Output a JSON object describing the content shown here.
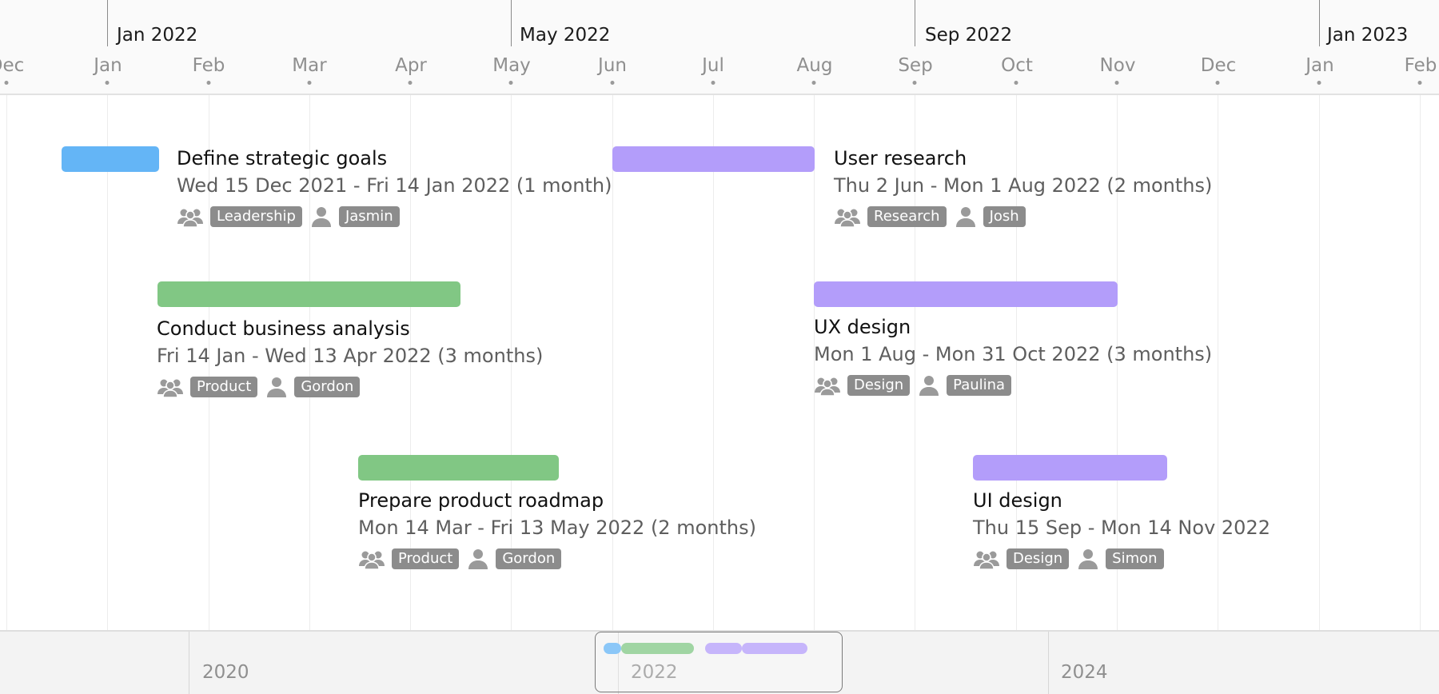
{
  "header": {
    "major": [
      {
        "label": "Jan 2022"
      },
      {
        "label": "May 2022"
      },
      {
        "label": "Sep 2022"
      },
      {
        "label": "Jan 2023"
      }
    ],
    "minor": [
      {
        "label": "Dec"
      },
      {
        "label": "Jan"
      },
      {
        "label": "Feb"
      },
      {
        "label": "Mar"
      },
      {
        "label": "Apr"
      },
      {
        "label": "May"
      },
      {
        "label": "Jun"
      },
      {
        "label": "Jul"
      },
      {
        "label": "Aug"
      },
      {
        "label": "Sep"
      },
      {
        "label": "Oct"
      },
      {
        "label": "Nov"
      },
      {
        "label": "Dec"
      },
      {
        "label": "Jan"
      },
      {
        "label": "Feb"
      }
    ]
  },
  "tasks": [
    {
      "title": "Define strategic goals",
      "dates": "Wed 15 Dec 2021 - Fri 14 Jan 2022 (1 month)",
      "team": "Leadership",
      "person": "Jasmin",
      "color": "#64b5f6"
    },
    {
      "title": "Conduct business analysis",
      "dates": "Fri 14 Jan - Wed 13 Apr 2022 (3 months)",
      "team": "Product",
      "person": "Gordon",
      "color": "#81c784"
    },
    {
      "title": "Prepare product roadmap",
      "dates": "Mon 14 Mar - Fri 13 May 2022 (2 months)",
      "team": "Product",
      "person": "Gordon",
      "color": "#81c784"
    },
    {
      "title": "User research",
      "dates": "Thu 2 Jun - Mon 1 Aug 2022 (2 months)",
      "team": "Research",
      "person": "Josh",
      "color": "#b39dfa"
    },
    {
      "title": "UX design",
      "dates": "Mon 1 Aug - Mon 31 Oct 2022 (3 months)",
      "team": "Design",
      "person": "Paulina",
      "color": "#b39dfa"
    },
    {
      "title": "UI design",
      "dates": "Thu 15 Sep - Mon 14 Nov 2022",
      "team": "Design",
      "person": "Simon",
      "color": "#b39dfa"
    }
  ],
  "overview": {
    "years": [
      {
        "label": "2020"
      },
      {
        "label": "2022"
      },
      {
        "label": "2024"
      }
    ]
  },
  "icons": {
    "team": "team-icon",
    "person": "person-icon"
  }
}
